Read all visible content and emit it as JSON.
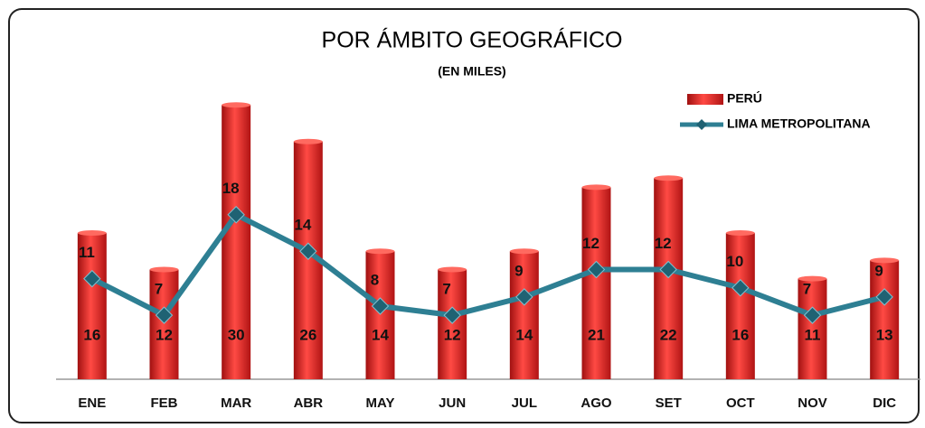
{
  "chart_data": {
    "type": "bar-line",
    "title": "POR ÁMBITO GEOGRÁFICO",
    "subtitle": "(EN MILES)",
    "categories": [
      "ENE",
      "FEB",
      "MAR",
      "ABR",
      "MAY",
      "JUN",
      "JUL",
      "AGO",
      "SET",
      "OCT",
      "NOV",
      "DIC"
    ],
    "series": [
      {
        "name": "PERÚ",
        "type": "bar",
        "color": "#e8302c",
        "values": [
          16,
          12,
          30,
          26,
          14,
          12,
          14,
          21,
          22,
          16,
          11,
          13
        ]
      },
      {
        "name": "LIMA METROPOLITANA",
        "type": "line",
        "color": "#2e7f93",
        "values": [
          11,
          7,
          18,
          14,
          8,
          7,
          9,
          12,
          12,
          10,
          7,
          9
        ]
      }
    ],
    "ylim": [
      0,
      32
    ],
    "legend": "upper right"
  }
}
